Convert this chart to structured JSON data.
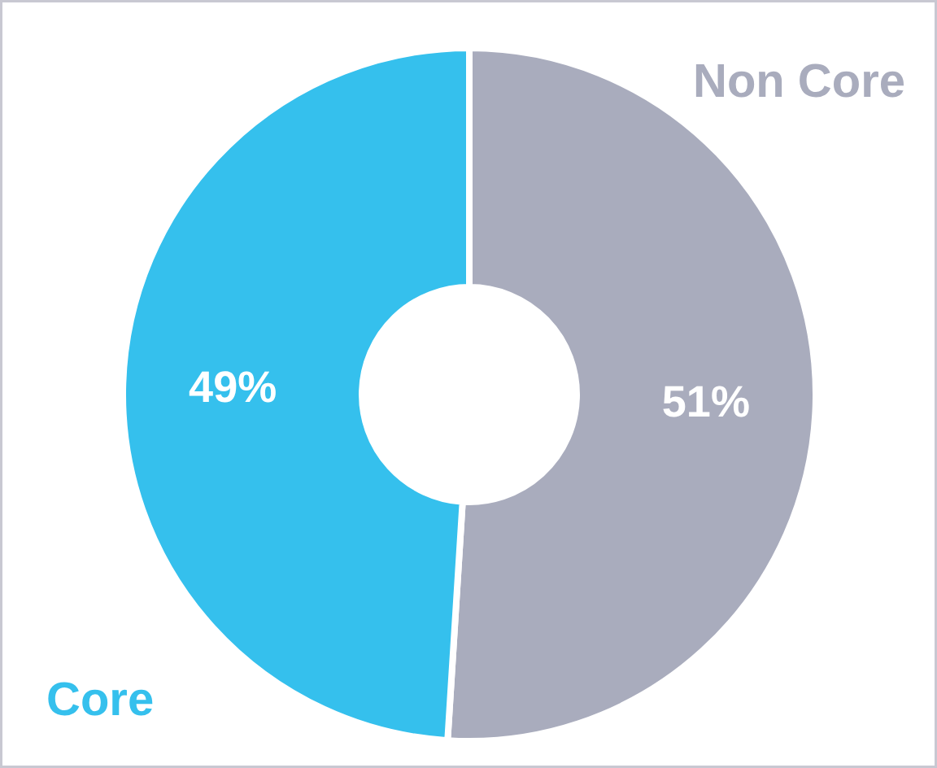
{
  "chart_data": {
    "type": "donut",
    "categories": [
      "Non Core",
      "Core"
    ],
    "values": [
      51,
      49
    ],
    "colors": [
      "#a9acbd",
      "#35c0ed"
    ],
    "value_labels": [
      "51%",
      "49%"
    ]
  }
}
